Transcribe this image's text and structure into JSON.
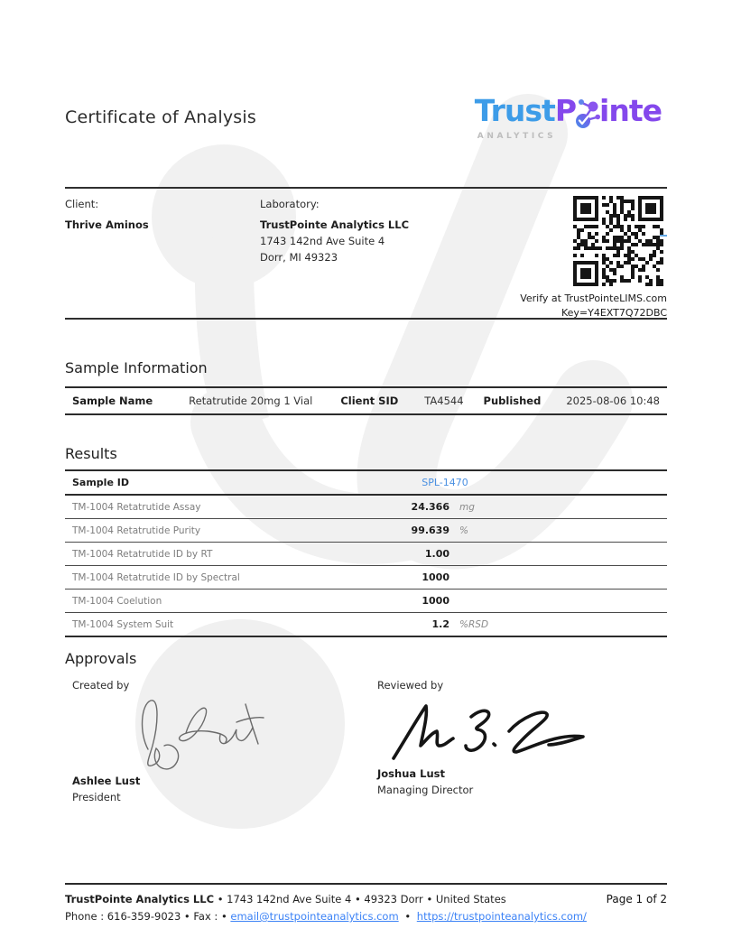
{
  "page": {
    "title": "Certificate of Analysis"
  },
  "logo": {
    "text_blue": "Trust",
    "text_purple_p": "P",
    "text_purple_rest": "inte",
    "subtitle": "ANALYTICS",
    "colors": {
      "blue": "#3d9ce8",
      "purple": "#8448ec",
      "subtitle_gray": "#bdbdbd"
    }
  },
  "parties": {
    "client_label": "Client:",
    "client_name": "Thrive Aminos",
    "lab_label": "Laboratory:",
    "lab_name": "TrustPointe Analytics LLC",
    "lab_address1": "1743 142nd Ave Suite 4",
    "lab_address2": "Dorr, MI 49323"
  },
  "verification": {
    "verify_text": "Verify at TrustPointeLIMS.com",
    "key_text": "Key=Y4EXT7Q72DBC",
    "qr_key": "Y4EXT7Q72DBC"
  },
  "sample_information": {
    "heading": "Sample Information",
    "sample_name_label": "Sample Name",
    "sample_name": "Retatrutide 20mg 1 Vial",
    "client_sid_label": "Client SID",
    "client_sid": "TA4544",
    "published_label": "Published",
    "published": "2025-08-06 10:48"
  },
  "results": {
    "heading": "Results",
    "header_label": "Sample ID",
    "header_value": "SPL-1470",
    "link_color": "#4a90e2",
    "rows": [
      {
        "name": "TM-1004 Retatrutide Assay",
        "value": "24.366",
        "unit": "mg"
      },
      {
        "name": "TM-1004 Retatrutide Purity",
        "value": "99.639",
        "unit": "%"
      },
      {
        "name": "TM-1004 Retatrutide ID by RT",
        "value": "1.00",
        "unit": ""
      },
      {
        "name": "TM-1004 Retatrutide ID by Spectral",
        "value": "1000",
        "unit": ""
      },
      {
        "name": "TM-1004 Coelution",
        "value": "1000",
        "unit": ""
      },
      {
        "name": "TM-1004 System Suit",
        "value": "1.2",
        "unit": "%RSD"
      }
    ]
  },
  "approvals": {
    "heading": "Approvals",
    "created_by_label": "Created by",
    "created_by_name": "Ashlee Lust",
    "created_by_role": "President",
    "reviewed_by_label": "Reviewed by",
    "reviewed_by_name": "Joshua Lust",
    "reviewed_by_role": "Managing Director"
  },
  "footer": {
    "company": "TrustPointe Analytics LLC",
    "address_line": "• 1743 142nd Ave Suite 4 • 49323 Dorr • United States",
    "page_label": "Page 1 of 2",
    "phone_fax": "Phone : 616-359-9023 • Fax : •",
    "email": "email@trustpointeanalytics.com",
    "bullet": "•",
    "website": "https://trustpointeanalytics.com/"
  }
}
